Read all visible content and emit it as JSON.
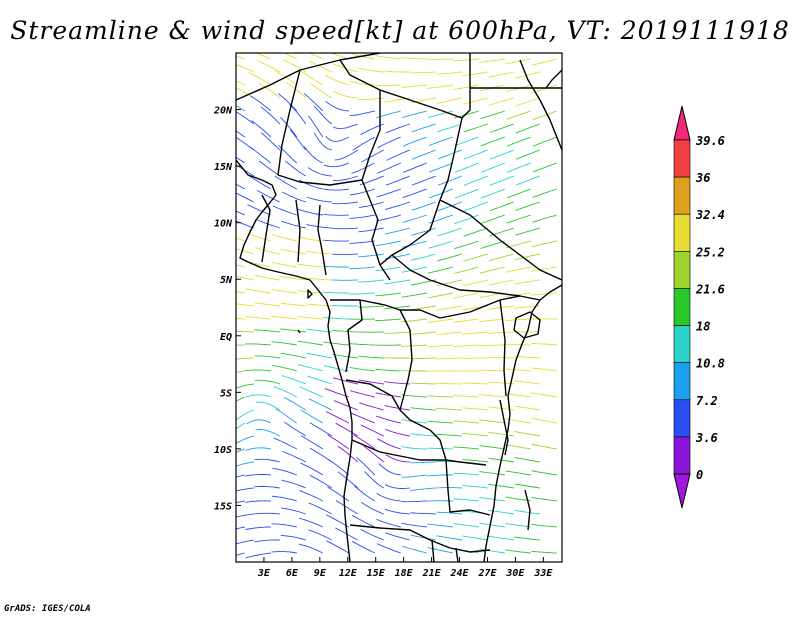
{
  "title": "Streamline & wind speed[kt] at 600hPa, VT: 2019111918",
  "credit": "GrADS: IGES/COLA",
  "map": {
    "lon_range": [
      0,
      35
    ],
    "lat_range": [
      -20,
      25
    ],
    "lon_ticks": [
      {
        "value": 3,
        "label": "3E"
      },
      {
        "value": 6,
        "label": "6E"
      },
      {
        "value": 9,
        "label": "9E"
      },
      {
        "value": 12,
        "label": "12E"
      },
      {
        "value": 15,
        "label": "15E"
      },
      {
        "value": 18,
        "label": "18E"
      },
      {
        "value": 21,
        "label": "21E"
      },
      {
        "value": 24,
        "label": "24E"
      },
      {
        "value": 27,
        "label": "27E"
      },
      {
        "value": 30,
        "label": "30E"
      },
      {
        "value": 33,
        "label": "33E"
      }
    ],
    "lat_ticks": [
      {
        "value": 20,
        "label": "20N"
      },
      {
        "value": 15,
        "label": "15N"
      },
      {
        "value": 10,
        "label": "10N"
      },
      {
        "value": 5,
        "label": "5N"
      },
      {
        "value": 0,
        "label": "EQ"
      },
      {
        "value": -5,
        "label": "5S"
      },
      {
        "value": -10,
        "label": "10S"
      },
      {
        "value": -15,
        "label": "15S"
      }
    ]
  },
  "colorbar": {
    "levels": [
      "39.6",
      "36",
      "32.4",
      "25.2",
      "21.6",
      "18",
      "10.8",
      "7.2",
      "3.6",
      "0"
    ],
    "colors": [
      "#f0287a",
      "#f04040",
      "#e0a020",
      "#e6dc32",
      "#a0d22e",
      "#28c828",
      "#2ad2c8",
      "#1ea0f0",
      "#2850f0",
      "#8a14d8",
      "#a018e0"
    ]
  }
}
